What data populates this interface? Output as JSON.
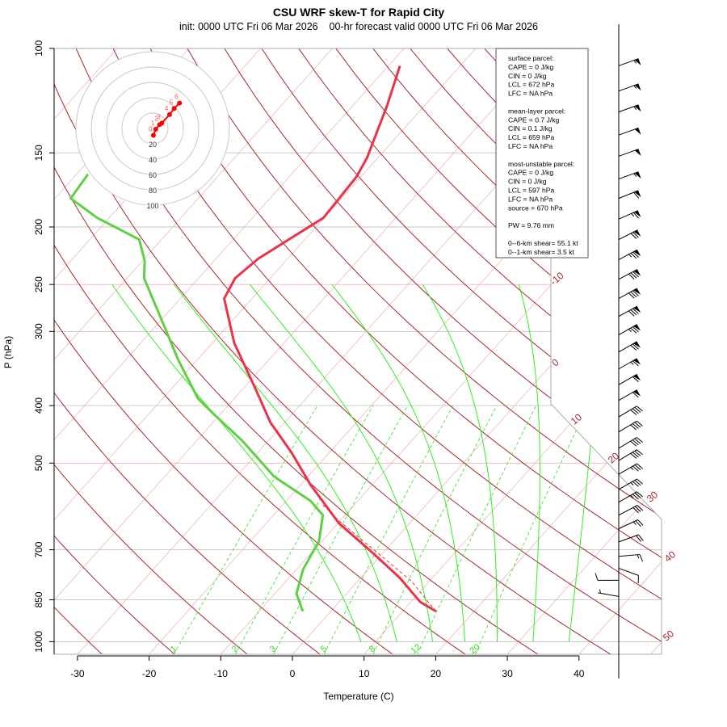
{
  "chart_data": {
    "type": "skew-T log-P",
    "title": "CSU WRF skew-T for Rapid City",
    "subtitle": "init: 0000 UTC Fri 06 Mar 2026    00-hr forecast valid 0000 UTC Fri 06 Mar 2026",
    "xlabel": "Temperature (C)",
    "ylabel": "P (hPa)",
    "x_ticks": [
      -30,
      -20,
      -10,
      0,
      10,
      20,
      30,
      40
    ],
    "y_ticks": [
      100,
      150,
      200,
      250,
      300,
      400,
      500,
      700,
      850,
      1000
    ],
    "y_scale": "log",
    "ylim": [
      1050,
      100
    ],
    "isotherm_labels": [
      -10,
      0,
      10,
      20,
      30,
      40,
      50
    ],
    "mixing_ratio_labels": [
      1,
      2,
      3,
      5,
      8,
      12,
      20
    ],
    "colors": {
      "temperature": "#e8344a",
      "dewpoint": "#5fcf45",
      "dry_adiabat": "#a52a2a",
      "isotherm": "#f2b8b8",
      "moist_adiabat": "#33ee22",
      "mixing_ratio": "#33dd22",
      "hodograph": "#ff0000"
    },
    "temperature": [
      [
        889,
        14.7
      ],
      [
        857,
        11.3
      ],
      [
        780,
        5.4
      ],
      [
        705,
        -1.8
      ],
      [
        632,
        -9.8
      ],
      [
        544,
        -18.6
      ],
      [
        479,
        -25.4
      ],
      [
        427,
        -32.0
      ],
      [
        373,
        -38.5
      ],
      [
        314,
        -46.9
      ],
      [
        264,
        -53.9
      ],
      [
        244,
        -54.9
      ],
      [
        226,
        -54.1
      ],
      [
        193,
        -50.1
      ],
      [
        165,
        -50.6
      ],
      [
        153,
        -51.5
      ],
      [
        125,
        -55.2
      ],
      [
        107,
        -58.4
      ]
    ],
    "dewpoint": [
      [
        889,
        -3.9
      ],
      [
        830,
        -7.0
      ],
      [
        755,
        -9.1
      ],
      [
        677,
        -10.4
      ],
      [
        612,
        -13.1
      ],
      [
        579,
        -16.6
      ],
      [
        527,
        -24.7
      ],
      [
        458,
        -33.7
      ],
      [
        413,
        -41.0
      ],
      [
        389,
        -45.1
      ],
      [
        334,
        -52.8
      ],
      [
        286,
        -60.1
      ],
      [
        244,
        -67.6
      ],
      [
        228,
        -69.7
      ],
      [
        210,
        -73.1
      ],
      [
        193,
        -81.7
      ],
      [
        179,
        -87.8
      ],
      [
        163,
        -88.4
      ]
    ],
    "parcel": [
      [
        889,
        14.7
      ],
      [
        857,
        12.4
      ],
      [
        792,
        7.6
      ],
      [
        732,
        1.7
      ],
      [
        677,
        -4.2
      ],
      [
        626,
        -10.1
      ],
      [
        588,
        -14.4
      ]
    ],
    "winds": [
      {
        "p": 107,
        "dir": 250,
        "kt": 55
      },
      {
        "p": 118,
        "dir": 250,
        "kt": 55
      },
      {
        "p": 128,
        "dir": 250,
        "kt": 55
      },
      {
        "p": 140,
        "dir": 250,
        "kt": 50
      },
      {
        "p": 152,
        "dir": 250,
        "kt": 50
      },
      {
        "p": 166,
        "dir": 250,
        "kt": 55
      },
      {
        "p": 179,
        "dir": 248,
        "kt": 60
      },
      {
        "p": 194,
        "dir": 246,
        "kt": 65
      },
      {
        "p": 210,
        "dir": 243,
        "kt": 70
      },
      {
        "p": 227,
        "dir": 242,
        "kt": 75
      },
      {
        "p": 245,
        "dir": 242,
        "kt": 80
      },
      {
        "p": 264,
        "dir": 241,
        "kt": 80
      },
      {
        "p": 283,
        "dir": 241,
        "kt": 80
      },
      {
        "p": 304,
        "dir": 240,
        "kt": 75
      },
      {
        "p": 325,
        "dir": 240,
        "kt": 70
      },
      {
        "p": 347,
        "dir": 240,
        "kt": 65
      },
      {
        "p": 369,
        "dir": 240,
        "kt": 60
      },
      {
        "p": 392,
        "dir": 240,
        "kt": 60
      },
      {
        "p": 418,
        "dir": 239,
        "kt": 40
      },
      {
        "p": 443,
        "dir": 239,
        "kt": 40
      },
      {
        "p": 472,
        "dir": 239,
        "kt": 40
      },
      {
        "p": 495,
        "dir": 239,
        "kt": 40
      },
      {
        "p": 522,
        "dir": 240,
        "kt": 35
      },
      {
        "p": 554,
        "dir": 240,
        "kt": 35
      },
      {
        "p": 582,
        "dir": 240,
        "kt": 35
      },
      {
        "p": 612,
        "dir": 242,
        "kt": 30
      },
      {
        "p": 645,
        "dir": 245,
        "kt": 25
      },
      {
        "p": 679,
        "dir": 250,
        "kt": 20
      },
      {
        "p": 718,
        "dir": 265,
        "kt": 15
      },
      {
        "p": 752,
        "dir": 290,
        "kt": 10
      },
      {
        "p": 788,
        "dir": 90,
        "kt": 10
      },
      {
        "p": 839,
        "dir": 100,
        "kt": 5
      }
    ],
    "hodograph": {
      "rings": [
        20,
        40,
        60,
        80,
        100
      ],
      "points": [
        {
          "label": "0",
          "u": 1,
          "v": -9
        },
        {
          "label": "1",
          "u": 4,
          "v": -1
        },
        {
          "label": "2",
          "u": 9,
          "v": 5
        },
        {
          "label": "3",
          "u": 12,
          "v": 7
        },
        {
          "label": "4",
          "u": 22,
          "v": 18
        },
        {
          "label": "5",
          "u": 28,
          "v": 26
        },
        {
          "label": "6",
          "u": 35,
          "v": 33
        }
      ]
    },
    "info_box": [
      "surface parcel:",
      "CAPE = 0 J/kg",
      "CIN = 0 J/kg",
      "LCL = 672 hPa",
      "LFC = NA hPa",
      "",
      "mean-layer parcel:",
      "CAPE = 0.7 J/kg",
      "CIN = 0.1 J/kg",
      "LCL = 659 hPa",
      "LFC = NA hPa",
      "",
      "most-unstable parcel:",
      "CAPE = 0 J/kg",
      "CIN = 0 J/kg",
      "LCL = 597 hPa",
      "LFC = NA hPa",
      "source = 670 hPa",
      "",
      "PW =  9.76 mm",
      "",
      "0--6-km shear= 55.1 kt",
      "0--1-km shear= 3.5 kt"
    ]
  }
}
